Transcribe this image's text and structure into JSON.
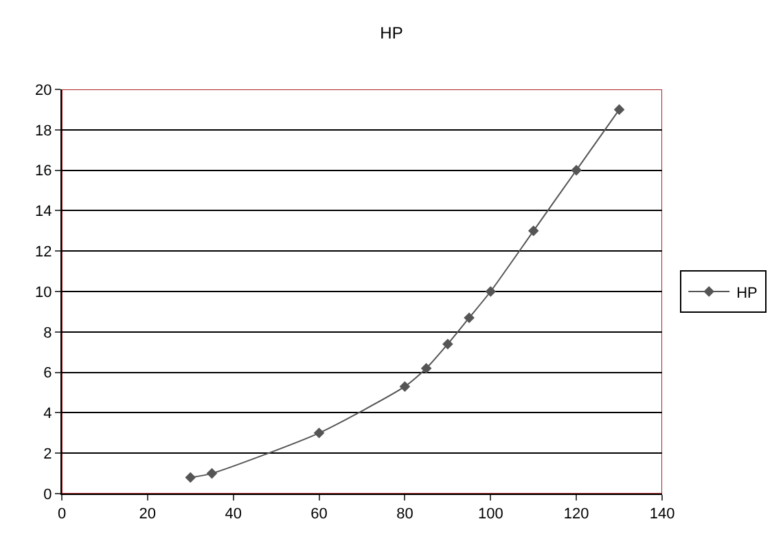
{
  "chart_data": {
    "type": "line",
    "title": "HP",
    "x": [
      30,
      35,
      60,
      80,
      85,
      90,
      95,
      100,
      110,
      120,
      130
    ],
    "series": [
      {
        "name": "HP",
        "color": "#555555",
        "values": [
          0.8,
          1.0,
          3.0,
          5.3,
          6.2,
          7.4,
          8.7,
          10,
          13,
          16,
          19
        ]
      }
    ],
    "xlim": [
      0,
      140
    ],
    "xticks": [
      0,
      20,
      40,
      60,
      80,
      100,
      120,
      140
    ],
    "ylim": [
      0,
      20
    ],
    "yticks": [
      0,
      2,
      4,
      6,
      8,
      10,
      12,
      14,
      16,
      18,
      20
    ],
    "grid": "y",
    "legend": "right",
    "marker": "diamond",
    "line_style": "solid"
  }
}
